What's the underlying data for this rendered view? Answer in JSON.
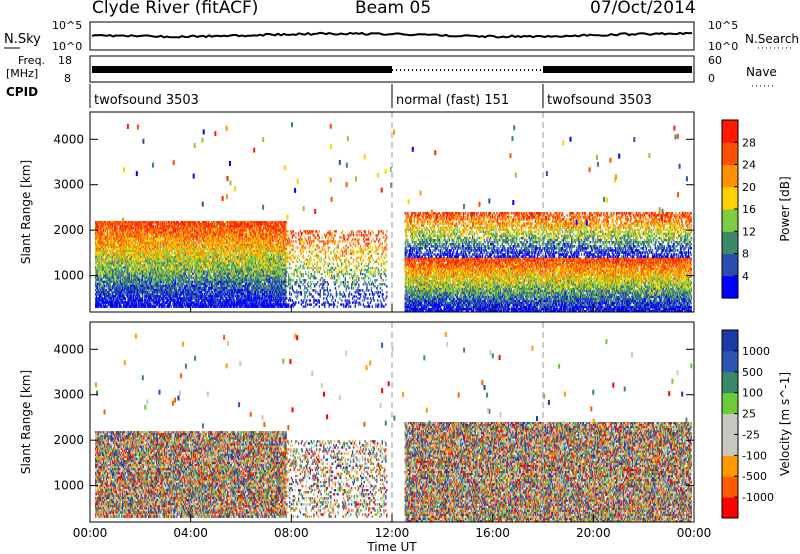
{
  "header": {
    "title": "Clyde River (fitACF)",
    "beam": "Beam 05",
    "date": "07/Oct/2014"
  },
  "colors": {
    "power": [
      "#0000ff",
      "#2a4db0",
      "#3a8a6a",
      "#7fcc40",
      "#ffd000",
      "#ff9000",
      "#ff5000",
      "#ff1a00"
    ],
    "velocity": [
      "#ff0000",
      "#ff5a00",
      "#ff9a00",
      "#c8c8c0",
      "#c8c8c0",
      "#6acc3a",
      "#3a8a6a",
      "#2a56b0",
      "#1a3aaa"
    ]
  },
  "time_axis": {
    "label": "Time UT",
    "ticks": [
      "00:00",
      "04:00",
      "08:00",
      "12:00",
      "16:00",
      "20:00",
      "00:00"
    ],
    "range_hours": [
      0,
      24
    ]
  },
  "noise_panel": {
    "left_label": "N.Sky",
    "right_label": "N.Search",
    "left_ticks": [
      "10^5",
      "10^0"
    ],
    "right_ticks": [
      "10^5",
      "10^0"
    ]
  },
  "freq_panel": {
    "left_label_1": "Freq.",
    "left_label_2": "[MHz]",
    "right_label": "Nave",
    "left_ticks": [
      "18",
      "8"
    ],
    "right_ticks": [
      "60",
      "0"
    ]
  },
  "cpid_panel": {
    "label": "CPID",
    "segments": [
      {
        "name": "twofsound 3503",
        "start": 0,
        "end": 12
      },
      {
        "name": "normal (fast) 151",
        "start": 12,
        "end": 18
      },
      {
        "name": "twofsound 3503",
        "start": 18,
        "end": 24
      }
    ]
  },
  "chart_data": [
    {
      "type": "heatmap",
      "title": "",
      "xlabel": "",
      "ylabel": "Slant Range [km]",
      "ylim": [
        200,
        4600
      ],
      "yticks": [
        "1000",
        "2000",
        "3000",
        "4000"
      ],
      "colorbar_label": "Power [dB]",
      "colorbar_ticks": [
        "4",
        "8",
        "12",
        "16",
        "20",
        "24",
        "28"
      ],
      "colorbar_range": [
        0,
        32
      ],
      "regions": [
        {
          "t0": 0.2,
          "t1": 7.8,
          "r0": 300,
          "r1": 2200,
          "level": "strong"
        },
        {
          "t0": 7.8,
          "t1": 11.8,
          "r0": 300,
          "r1": 2000,
          "level": "sparse"
        },
        {
          "t0": 12.5,
          "t1": 23.9,
          "r0": 200,
          "r1": 1400,
          "level": "strong"
        },
        {
          "t0": 12.5,
          "t1": 23.9,
          "r0": 1400,
          "r1": 2400,
          "level": "moderate"
        }
      ]
    },
    {
      "type": "heatmap",
      "title": "",
      "xlabel": "Time UT",
      "ylabel": "Slant Range [km]",
      "ylim": [
        200,
        4600
      ],
      "yticks": [
        "1000",
        "2000",
        "3000",
        "4000"
      ],
      "colorbar_label": "Velocity [m s^-1]",
      "colorbar_ticks": [
        "1000",
        "500",
        "100",
        "25",
        "-25",
        "-100",
        "-500",
        "-1000"
      ],
      "regions": [
        {
          "t0": 0.2,
          "t1": 7.8,
          "r0": 300,
          "r1": 2200,
          "level": "mixed"
        },
        {
          "t0": 7.8,
          "t1": 11.8,
          "r0": 300,
          "r1": 2000,
          "level": "sparse"
        },
        {
          "t0": 12.5,
          "t1": 23.9,
          "r0": 200,
          "r1": 2400,
          "level": "mixed"
        }
      ]
    }
  ]
}
